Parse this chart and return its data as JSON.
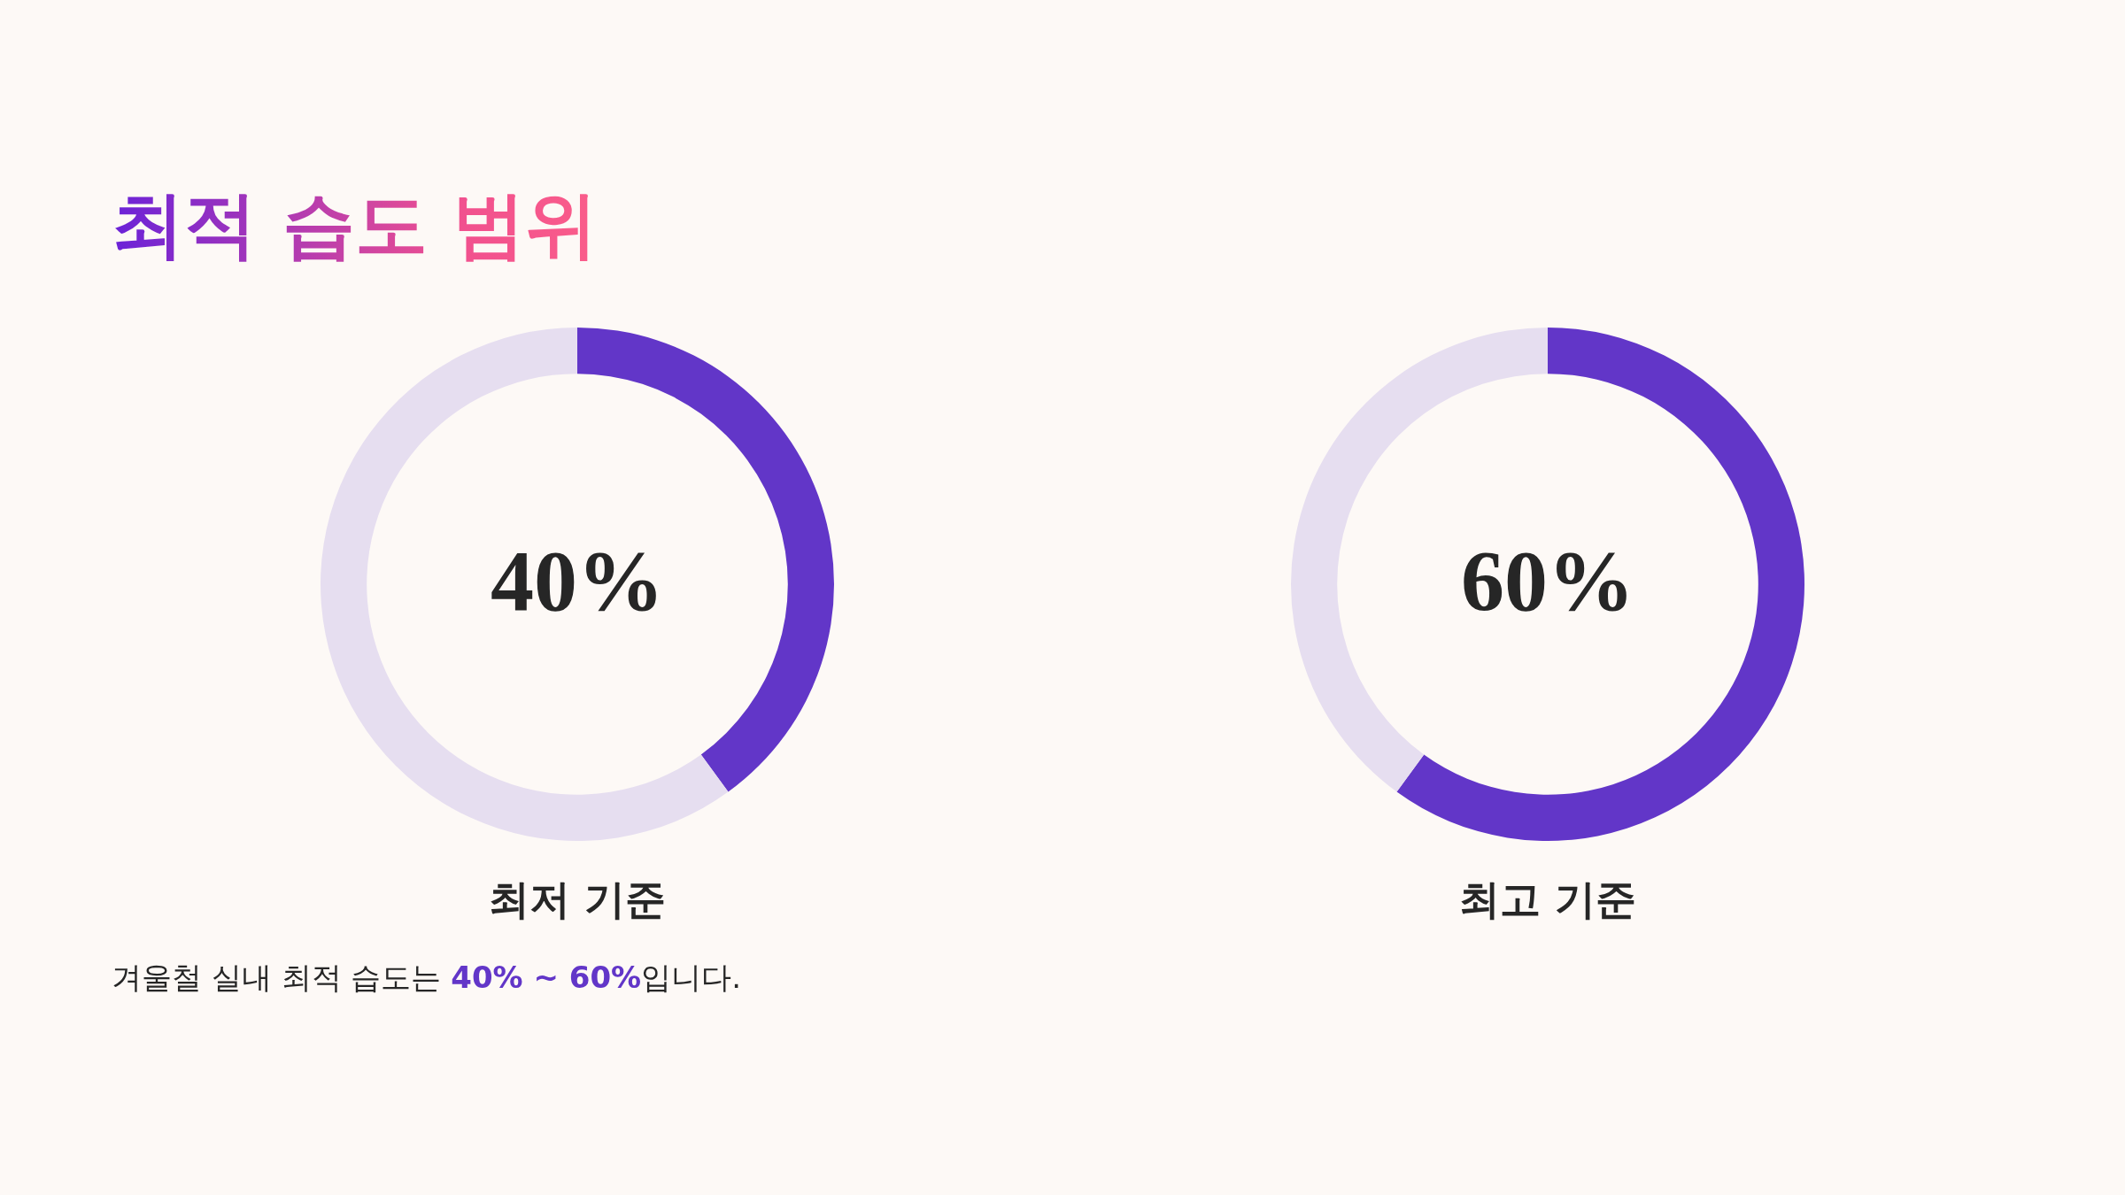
{
  "chart_data": [
    {
      "type": "donut",
      "title": "최적 습도 범위",
      "xlabel": "최저 기준",
      "categories": [
        null,
        null
      ],
      "values": [
        40,
        60
      ],
      "colors": [
        "#6236c8",
        "#e6def0"
      ],
      "value_labels": [
        "40%",
        null
      ],
      "annotations": [
        "겨울철 실내 최적 습도는 40% ~ 60%입니다."
      ]
    },
    {
      "type": "donut",
      "xlabel": "최고 기준",
      "categories": [
        null,
        null
      ],
      "values": [
        60,
        40
      ],
      "colors": [
        "#6236c8",
        "#e6def0"
      ],
      "value_labels": [
        "60%",
        null
      ]
    }
  ]
}
